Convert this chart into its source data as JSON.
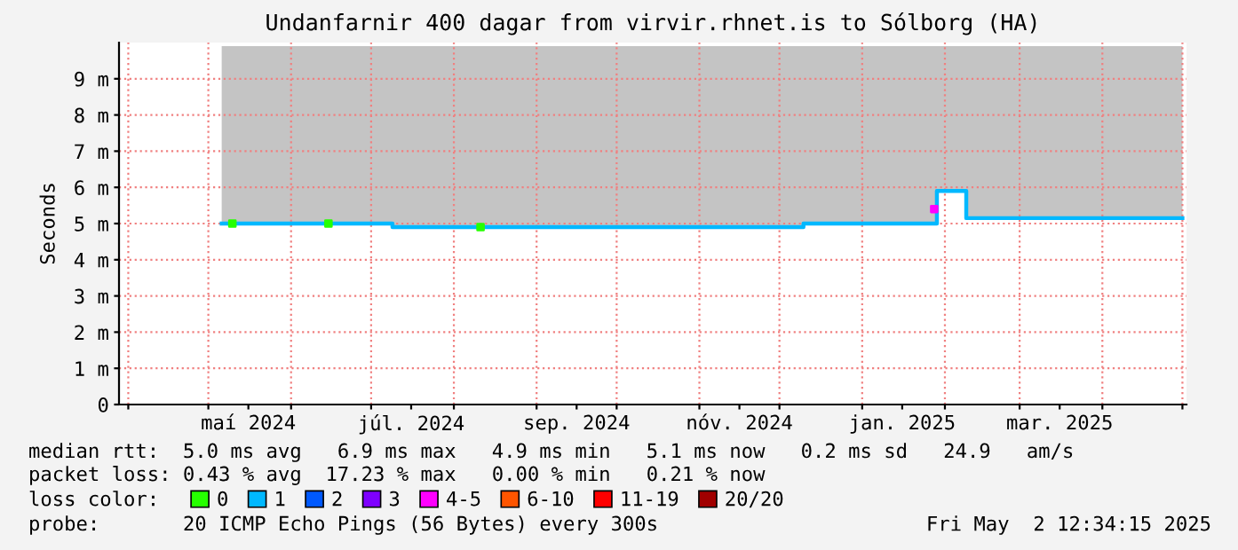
{
  "chart_data": {
    "type": "line",
    "title": "Undanfarnir 400 dagar from virvir.rhnet.is to Sólborg (HA)",
    "ylabel": "Seconds",
    "legend_title": "loss color:",
    "legend": "bottom",
    "grid": true,
    "marker": "none",
    "line_style": "solid",
    "xlim": [
      "2024-03-28T12:34",
      "2025-05-02T12:34"
    ],
    "xticks": [
      {
        "value": "2024-04-01",
        "label": null
      },
      {
        "value": "2024-05-01",
        "label": null
      },
      {
        "value": "2024-05-16",
        "label": "maí 2024"
      },
      {
        "value": "2024-06-01",
        "label": null
      },
      {
        "value": "2024-07-01",
        "label": null
      },
      {
        "value": "2024-07-16",
        "label": "júl. 2024"
      },
      {
        "value": "2024-08-01",
        "label": null
      },
      {
        "value": "2024-09-01",
        "label": null
      },
      {
        "value": "2024-09-16",
        "label": "sep. 2024"
      },
      {
        "value": "2024-10-01",
        "label": null
      },
      {
        "value": "2024-11-01",
        "label": null
      },
      {
        "value": "2024-11-16",
        "label": "nóv. 2024"
      },
      {
        "value": "2024-12-01",
        "label": null
      },
      {
        "value": "2025-01-01",
        "label": null
      },
      {
        "value": "2025-01-16",
        "label": "jan. 2025"
      },
      {
        "value": "2025-02-01",
        "label": null
      },
      {
        "value": "2025-03-01",
        "label": null
      },
      {
        "value": "2025-03-16",
        "label": "mar. 2025"
      },
      {
        "value": "2025-04-01",
        "label": null
      },
      {
        "value": "2025-05-01",
        "label": null
      }
    ],
    "ylim": [
      0,
      10
    ],
    "yticks": [
      {
        "value": 0,
        "label": "0"
      },
      {
        "value": 1,
        "label": "1 m"
      },
      {
        "value": 2,
        "label": "2 m"
      },
      {
        "value": 3,
        "label": "3 m"
      },
      {
        "value": 4,
        "label": "4 m"
      },
      {
        "value": 5,
        "label": "5 m"
      },
      {
        "value": 6,
        "label": "6 m"
      },
      {
        "value": 7,
        "label": "7 m"
      },
      {
        "value": 8,
        "label": "8 m"
      },
      {
        "value": 9,
        "label": "9 m"
      }
    ],
    "series": [
      {
        "name": "0",
        "type": "scatter",
        "marker": "square",
        "color": "#26ff00",
        "x": [
          "2024-05-10",
          "2024-06-15",
          "2024-08-11"
        ],
        "values": [
          5.0,
          5.0,
          4.9
        ]
      },
      {
        "name": "1",
        "color": "#00b8ff",
        "x": [
          "2024-05-06",
          "2024-07-08",
          "2024-07-09",
          "2024-12-09",
          "2024-12-10",
          "2025-01-27",
          "2025-01-29",
          "2025-02-08",
          "2025-02-09",
          "2025-05-01"
        ],
        "values": [
          5.0,
          5.0,
          4.9,
          4.9,
          5.0,
          5.0,
          5.9,
          5.9,
          5.15,
          5.15
        ],
        "lower": [
          5.0,
          5.0,
          4.9,
          4.9,
          5.0,
          5.0,
          5.9,
          5.9,
          5.15,
          5.15
        ],
        "upper": [
          9.9,
          9.9,
          9.9,
          9.9,
          9.9,
          9.9,
          9.9,
          9.9,
          9.9,
          9.9
        ]
      },
      {
        "name": "2",
        "type": "scatter",
        "color": "#0059ff"
      },
      {
        "name": "3",
        "type": "scatter",
        "color": "#7e00ff"
      },
      {
        "name": "4-5",
        "type": "scatter",
        "marker": "square",
        "color": "#ff00ff",
        "x": [
          "2025-01-28"
        ],
        "values": [
          5.4
        ]
      },
      {
        "name": "6-10",
        "type": "scatter",
        "color": "#ff5500"
      },
      {
        "name": "11-19",
        "type": "scatter",
        "color": "#ff0000"
      },
      {
        "name": "20/20",
        "type": "scatter",
        "color": "#a10000"
      }
    ],
    "annotations": [
      "median rtt:  5.0 ms avg   6.9 ms max   4.9 ms min   5.1 ms now   0.2 ms sd   24.9   am/s",
      "packet loss: 0.43 % avg  17.23 % max   0.00 % min   0.21 % now",
      "probe:       20 ICMP Echo Pings (56 Bytes) every 300s",
      "Fri May  2 12:34:15 2025"
    ]
  }
}
